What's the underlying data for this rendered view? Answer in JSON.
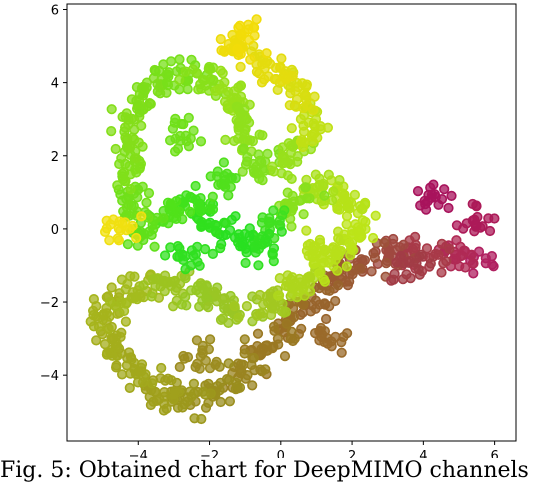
{
  "caption": "Fig. 5: Obtained chart for DeepMIMO channels",
  "chart_data": {
    "type": "scatter",
    "title": "",
    "xlabel": "",
    "ylabel": "",
    "xlim": [
      -6.0,
      6.6
    ],
    "ylim": [
      -5.8,
      6.15
    ],
    "xticks": [
      -4,
      -2,
      0,
      2,
      4,
      6
    ],
    "yticks": [
      -4,
      -2,
      0,
      2,
      4,
      6
    ],
    "xtick_labels": [
      "−4",
      "−2",
      "0",
      "2",
      "4",
      "6"
    ],
    "ytick_labels": [
      "−4",
      "−2",
      "0",
      "2",
      "4",
      "6"
    ],
    "grid": false,
    "legend": "none",
    "marker": "ring",
    "trajectory": [
      {
        "x": 5.7,
        "y": -0.9,
        "color": "#b02060"
      },
      {
        "x": 4.9,
        "y": -0.75,
        "color": "#b02a55"
      },
      {
        "x": 4.0,
        "y": -0.7,
        "color": "#a83a48"
      },
      {
        "x": 3.0,
        "y": -0.7,
        "color": "#a04840"
      },
      {
        "x": 2.3,
        "y": -0.8,
        "color": "#9c5238"
      },
      {
        "x": 1.6,
        "y": -1.3,
        "color": "#9a5a32"
      },
      {
        "x": 1.0,
        "y": -1.9,
        "color": "#98642c"
      },
      {
        "x": 0.4,
        "y": -2.6,
        "color": "#9a6e26"
      },
      {
        "x": -0.3,
        "y": -3.2,
        "color": "#9a7822"
      },
      {
        "x": -1.0,
        "y": -3.9,
        "color": "#9a8420"
      },
      {
        "x": -1.8,
        "y": -4.4,
        "color": "#9a8e1e"
      },
      {
        "x": -2.7,
        "y": -4.75,
        "color": "#9c981c"
      },
      {
        "x": -3.5,
        "y": -4.5,
        "color": "#a0a01c"
      },
      {
        "x": -4.3,
        "y": -3.8,
        "color": "#a2a81c"
      },
      {
        "x": -4.9,
        "y": -3.1,
        "color": "#a4ae1c"
      },
      {
        "x": -4.9,
        "y": -2.2,
        "color": "#a6b41c"
      },
      {
        "x": -4.1,
        "y": -1.6,
        "color": "#a4bc1e"
      },
      {
        "x": -3.1,
        "y": -1.5,
        "color": "#9cc420"
      },
      {
        "x": -2.2,
        "y": -1.8,
        "color": "#96c824"
      },
      {
        "x": -1.3,
        "y": -2.2,
        "color": "#9ac624"
      },
      {
        "x": -0.3,
        "y": -2.1,
        "color": "#a2c820"
      },
      {
        "x": 0.6,
        "y": -1.5,
        "color": "#aed61c"
      },
      {
        "x": 1.6,
        "y": -0.7,
        "color": "#b8e01a"
      },
      {
        "x": 2.3,
        "y": 0.0,
        "color": "#bce418"
      },
      {
        "x": 1.9,
        "y": 0.8,
        "color": "#b6e218"
      },
      {
        "x": 1.0,
        "y": 1.2,
        "color": "#a8e01a"
      },
      {
        "x": 0.3,
        "y": 0.7,
        "color": "#88e01c"
      },
      {
        "x": -0.2,
        "y": 0.1,
        "color": "#40e020"
      },
      {
        "x": -0.6,
        "y": -0.5,
        "color": "#30e020"
      },
      {
        "x": -1.3,
        "y": -0.3,
        "color": "#28e020"
      },
      {
        "x": -2.0,
        "y": 0.2,
        "color": "#30e01e"
      },
      {
        "x": -2.5,
        "y": 0.8,
        "color": "#40e21c"
      },
      {
        "x": -3.2,
        "y": 0.3,
        "color": "#50e21a"
      },
      {
        "x": -3.8,
        "y": -0.1,
        "color": "#60e01a"
      },
      {
        "x": -4.1,
        "y": 0.8,
        "color": "#70e01a"
      },
      {
        "x": -4.3,
        "y": 1.8,
        "color": "#80e01a"
      },
      {
        "x": -4.2,
        "y": 2.9,
        "color": "#84de1a"
      },
      {
        "x": -3.7,
        "y": 3.9,
        "color": "#7ede1a"
      },
      {
        "x": -2.9,
        "y": 4.2,
        "color": "#78e01a"
      },
      {
        "x": -2.0,
        "y": 4.2,
        "color": "#88e01a"
      },
      {
        "x": -1.4,
        "y": 3.7,
        "color": "#98e01a"
      },
      {
        "x": -1.0,
        "y": 2.6,
        "color": "#90e01c"
      },
      {
        "x": -0.6,
        "y": 1.7,
        "color": "#80e01e"
      },
      {
        "x": 0.2,
        "y": 1.9,
        "color": "#98e01c"
      },
      {
        "x": 0.9,
        "y": 2.9,
        "color": "#c0e014"
      },
      {
        "x": 0.5,
        "y": 3.9,
        "color": "#d8de10"
      },
      {
        "x": -0.5,
        "y": 4.5,
        "color": "#e4dc0e"
      },
      {
        "x": -1.5,
        "y": 5.1,
        "color": "#eedc0a"
      },
      {
        "x": -0.7,
        "y": 5.4,
        "color": "#f2dc08"
      }
    ],
    "clusters": [
      {
        "x": 4.3,
        "y": 0.85,
        "color": "#a8135c"
      },
      {
        "x": 5.6,
        "y": 0.3,
        "color": "#ac1a58"
      },
      {
        "x": 3.6,
        "y": -1.0,
        "color": "#a23c46"
      },
      {
        "x": 1.2,
        "y": -3.0,
        "color": "#9a6a2a"
      },
      {
        "x": -2.3,
        "y": -3.5,
        "color": "#9c8c20"
      },
      {
        "x": -4.4,
        "y": 0.05,
        "color": "#f0e010"
      },
      {
        "x": -2.7,
        "y": -0.7,
        "color": "#30e020"
      },
      {
        "x": -1.6,
        "y": 1.3,
        "color": "#50e01c"
      },
      {
        "x": 1.0,
        "y": -0.5,
        "color": "#b8e01a"
      },
      {
        "x": -2.7,
        "y": 2.6,
        "color": "#70e01a"
      }
    ]
  }
}
